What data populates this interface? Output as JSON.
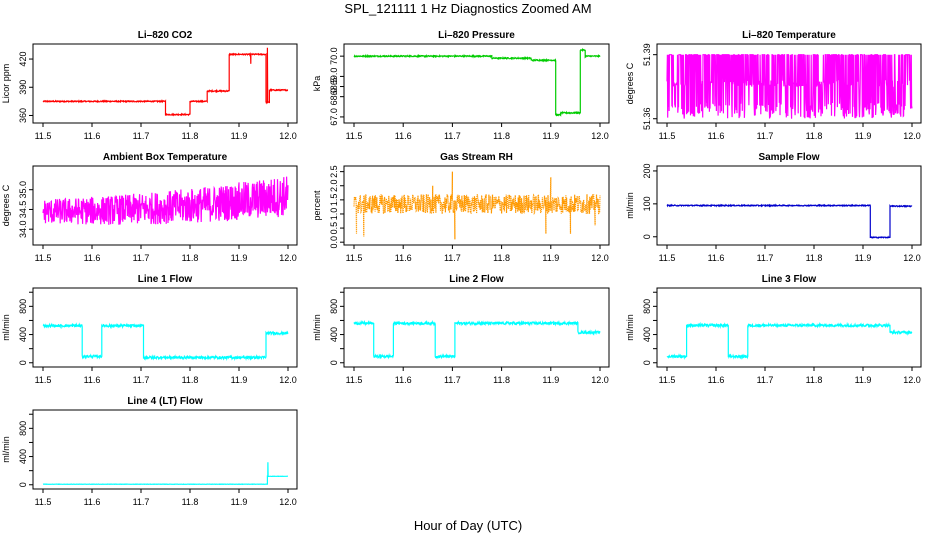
{
  "page": {
    "title": "SPL_121111  1 Hz Diagnostics Zoomed AM",
    "xlabel": "Hour of Day (UTC)"
  },
  "chart_data": [
    {
      "id": "co2",
      "type": "line",
      "title": "Li–820 CO2",
      "ylabel": "Licor ppm",
      "color": "#ff0000",
      "xlim": [
        11.5,
        12.0
      ],
      "ylim": [
        352,
        436
      ],
      "yticks": [
        360,
        390,
        420
      ],
      "yticklabels": [
        "360",
        "390",
        "420"
      ],
      "noise": 0.6,
      "segments": [
        [
          11.5,
          11.75,
          375
        ],
        [
          11.75,
          11.8,
          361
        ],
        [
          11.8,
          11.835,
          375
        ],
        [
          11.835,
          11.88,
          386
        ],
        [
          11.88,
          11.955,
          425
        ],
        [
          11.955,
          11.962,
          374
        ],
        [
          11.962,
          12.0,
          387
        ]
      ],
      "spikes": [
        [
          11.958,
          432
        ],
        [
          11.924,
          415
        ]
      ]
    },
    {
      "id": "pressure",
      "type": "line",
      "title": "Li–820 Pressure",
      "ylabel": "kPa",
      "color": "#00cc00",
      "xlim": [
        11.5,
        12.0
      ],
      "ylim": [
        66.7,
        70.6
      ],
      "yticks": [
        67.0,
        68.0,
        68.5,
        69.0,
        70.0
      ],
      "yticklabels": [
        "67.0",
        "68.0",
        "68.5",
        "69.0",
        "70.0"
      ],
      "noise": 0.03,
      "segments": [
        [
          11.5,
          11.78,
          70.0
        ],
        [
          11.78,
          11.86,
          69.9
        ],
        [
          11.86,
          11.91,
          69.8
        ],
        [
          11.91,
          11.92,
          67.1
        ],
        [
          11.92,
          11.96,
          67.2
        ],
        [
          11.96,
          11.97,
          70.3
        ],
        [
          11.97,
          12.0,
          70.0
        ]
      ],
      "spikes": []
    },
    {
      "id": "licor_temp",
      "type": "line",
      "title": "Li–820 Temperature",
      "ylabel": "degrees C",
      "color": "#ff00ff",
      "xlim": [
        11.5,
        12.0
      ],
      "ylim": [
        51.358,
        51.395
      ],
      "yticks": [
        51.36,
        51.39
      ],
      "yticklabels": [
        "51.36",
        "51.39"
      ],
      "noise": 0,
      "pattern": "flicker",
      "low": 51.36,
      "high": 51.39,
      "lowband": 51.375,
      "segments": [],
      "spikes": []
    },
    {
      "id": "box_temp",
      "type": "line",
      "title": "Ambient Box Temperature",
      "ylabel": "degrees C",
      "color": "#ff00ff",
      "xlim": [
        11.5,
        12.0
      ],
      "ylim": [
        33.6,
        35.6
      ],
      "yticks": [
        34.0,
        34.5,
        35.0
      ],
      "yticklabels": [
        "34.0",
        "34.5",
        "35.0"
      ],
      "noise": 0.35,
      "pattern": "trend",
      "startv": 34.45,
      "endv": 34.85,
      "segments": [],
      "spikes": []
    },
    {
      "id": "gas_rh",
      "type": "line",
      "title": "Gas Stream RH",
      "ylabel": "percent",
      "color": "#ff9900",
      "xlim": [
        11.5,
        12.0
      ],
      "ylim": [
        -0.1,
        2.7
      ],
      "yticks": [
        0.0,
        0.5,
        1.0,
        1.5,
        2.0,
        2.5
      ],
      "yticklabels": [
        "0.0",
        "0.5",
        "1.0",
        "1.5",
        "2.0",
        "2.5"
      ],
      "noise": 0.35,
      "pattern": "dots",
      "segments": [
        [
          11.5,
          12.0,
          1.35
        ]
      ],
      "spikes": [
        [
          11.505,
          0.3
        ],
        [
          11.52,
          0.2
        ],
        [
          11.7,
          2.5
        ],
        [
          11.705,
          0.1
        ],
        [
          11.9,
          2.3
        ],
        [
          11.89,
          0.3
        ],
        [
          11.66,
          2.0
        ],
        [
          11.94,
          0.3
        ],
        [
          11.99,
          0.6
        ]
      ]
    },
    {
      "id": "sample_flow",
      "type": "line",
      "title": "Sample Flow",
      "ylabel": "ml/min",
      "color": "#0000cc",
      "xlim": [
        11.5,
        12.0
      ],
      "ylim": [
        -25,
        215
      ],
      "yticks": [
        0,
        100,
        200
      ],
      "yticklabels": [
        "0",
        "100",
        "200"
      ],
      "noise": 1.5,
      "segments": [
        [
          11.5,
          11.915,
          95
        ],
        [
          11.915,
          11.955,
          -2
        ],
        [
          11.955,
          12.0,
          93
        ]
      ],
      "spikes": []
    },
    {
      "id": "line1",
      "type": "line",
      "title": "Line 1 Flow",
      "ylabel": "ml/min",
      "color": "#00ffff",
      "xlim": [
        11.5,
        12.0
      ],
      "ylim": [
        -60,
        1060
      ],
      "yticks": [
        0,
        200,
        400,
        600,
        800,
        1000
      ],
      "yticklabels": [
        "0",
        "",
        "400",
        "",
        "800",
        ""
      ],
      "noise": 18,
      "segments": [
        [
          11.5,
          11.58,
          525
        ],
        [
          11.58,
          11.62,
          90
        ],
        [
          11.62,
          11.705,
          525
        ],
        [
          11.705,
          11.955,
          75
        ],
        [
          11.955,
          12.0,
          420
        ]
      ],
      "spikes": []
    },
    {
      "id": "line2",
      "type": "line",
      "title": "Line 2 Flow",
      "ylabel": "ml/min",
      "color": "#00ffff",
      "xlim": [
        11.5,
        12.0
      ],
      "ylim": [
        -60,
        1060
      ],
      "yticks": [
        0,
        200,
        400,
        600,
        800,
        1000
      ],
      "yticklabels": [
        "0",
        "",
        "400",
        "",
        "800",
        ""
      ],
      "noise": 18,
      "segments": [
        [
          11.5,
          11.54,
          560
        ],
        [
          11.54,
          11.58,
          90
        ],
        [
          11.58,
          11.665,
          560
        ],
        [
          11.665,
          11.705,
          90
        ],
        [
          11.705,
          11.955,
          560
        ],
        [
          11.955,
          12.0,
          430
        ]
      ],
      "spikes": []
    },
    {
      "id": "line3",
      "type": "line",
      "title": "Line 3 Flow",
      "ylabel": "ml/min",
      "color": "#00ffff",
      "xlim": [
        11.5,
        12.0
      ],
      "ylim": [
        -60,
        1060
      ],
      "yticks": [
        0,
        200,
        400,
        600,
        800,
        1000
      ],
      "yticklabels": [
        "0",
        "",
        "400",
        "",
        "800",
        ""
      ],
      "noise": 18,
      "segments": [
        [
          11.5,
          11.54,
          90
        ],
        [
          11.54,
          11.625,
          530
        ],
        [
          11.625,
          11.665,
          90
        ],
        [
          11.665,
          11.955,
          530
        ],
        [
          11.955,
          12.0,
          430
        ]
      ],
      "spikes": []
    },
    {
      "id": "line4",
      "type": "line",
      "title": "Line 4 (LT) Flow",
      "ylabel": "ml/min",
      "color": "#00ffff",
      "xlim": [
        11.5,
        12.0
      ],
      "ylim": [
        -60,
        1060
      ],
      "yticks": [
        0,
        200,
        400,
        600,
        800,
        1000
      ],
      "yticklabels": [
        "0",
        "",
        "400",
        "",
        "800",
        ""
      ],
      "noise": 2,
      "segments": [
        [
          11.5,
          11.958,
          8
        ],
        [
          11.958,
          12.0,
          120
        ]
      ],
      "spikes": [
        [
          11.959,
          320
        ]
      ]
    }
  ],
  "xticks": [
    11.5,
    11.6,
    11.7,
    11.8,
    11.9,
    12.0
  ],
  "xticklabels": [
    "11.5",
    "11.6",
    "11.7",
    "11.8",
    "11.9",
    "12.0"
  ]
}
